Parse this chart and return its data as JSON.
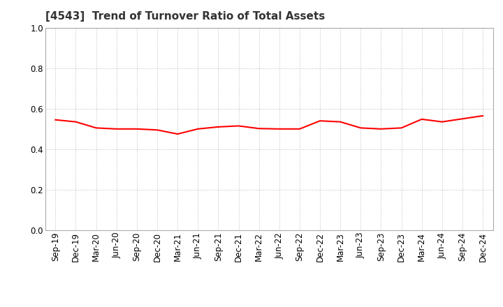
{
  "title": "[4543]  Trend of Turnover Ratio of Total Assets",
  "x_labels": [
    "Sep-19",
    "Dec-19",
    "Mar-20",
    "Jun-20",
    "Sep-20",
    "Dec-20",
    "Mar-21",
    "Jun-21",
    "Sep-21",
    "Dec-21",
    "Mar-22",
    "Jun-22",
    "Sep-22",
    "Dec-22",
    "Mar-23",
    "Jun-23",
    "Sep-23",
    "Dec-23",
    "Mar-24",
    "Jun-24",
    "Sep-24",
    "Dec-24"
  ],
  "y_values": [
    0.545,
    0.535,
    0.505,
    0.5,
    0.5,
    0.495,
    0.475,
    0.5,
    0.51,
    0.515,
    0.502,
    0.5,
    0.5,
    0.54,
    0.535,
    0.505,
    0.5,
    0.505,
    0.548,
    0.535,
    0.55,
    0.565
  ],
  "ylim": [
    0.0,
    1.0
  ],
  "yticks": [
    0.0,
    0.2,
    0.4,
    0.6,
    0.8,
    1.0
  ],
  "line_color": "#ff0000",
  "line_width": 1.5,
  "grid_color": "#bbbbbb",
  "bg_color": "#ffffff",
  "title_fontsize": 11,
  "tick_fontsize": 8.5
}
